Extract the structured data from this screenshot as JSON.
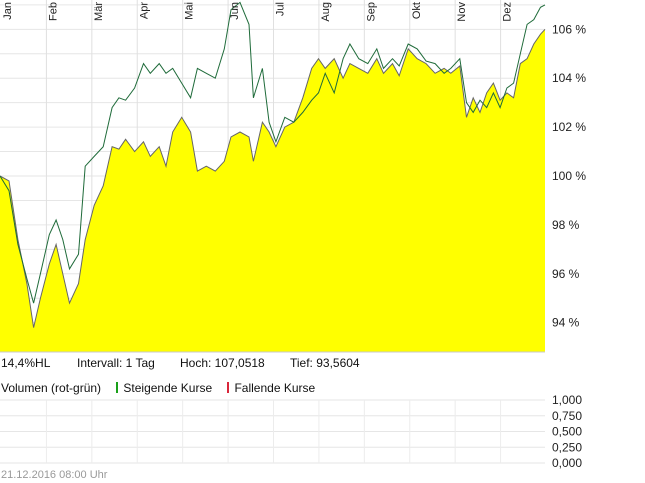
{
  "chart_data": {
    "type": "area",
    "months": [
      "Jan",
      "Feb",
      "Mär",
      "Apr",
      "Mai",
      "Jun",
      "Jul",
      "Aug",
      "Sep",
      "Okt",
      "Nov",
      "Dez"
    ],
    "y_ticks": [
      "94 %",
      "96 %",
      "98 %",
      "100 %",
      "102 %",
      "104 %",
      "106 %"
    ],
    "ylim": [
      92.8,
      107.2
    ],
    "x_range": [
      0,
      243
    ],
    "grid": true,
    "series": [
      {
        "fill": "#ffff00",
        "line": "#666666",
        "points": [
          [
            0,
            100
          ],
          [
            4,
            99.8
          ],
          [
            8,
            97.4
          ],
          [
            12,
            95.6
          ],
          [
            15,
            93.8
          ],
          [
            18,
            95
          ],
          [
            22,
            96.4
          ],
          [
            25,
            97.2
          ],
          [
            28,
            96
          ],
          [
            31,
            94.8
          ],
          [
            35,
            95.6
          ],
          [
            38,
            97.4
          ],
          [
            42,
            98.8
          ],
          [
            46,
            99.6
          ],
          [
            50,
            101.2
          ],
          [
            53,
            101.1
          ],
          [
            56,
            101.5
          ],
          [
            60,
            101
          ],
          [
            64,
            101.4
          ],
          [
            67,
            100.8
          ],
          [
            71,
            101.2
          ],
          [
            74,
            100.4
          ],
          [
            77,
            101.8
          ],
          [
            81,
            102.4
          ],
          [
            85,
            101.8
          ],
          [
            88,
            100.2
          ],
          [
            92,
            100.4
          ],
          [
            96,
            100.2
          ],
          [
            100,
            100.6
          ],
          [
            103,
            101.6
          ],
          [
            107,
            101.8
          ],
          [
            111,
            101.6
          ],
          [
            113,
            100.6
          ],
          [
            117,
            102.2
          ],
          [
            120,
            101.8
          ],
          [
            123,
            101.2
          ],
          [
            127,
            102
          ],
          [
            131,
            102.2
          ],
          [
            135,
            103.2
          ],
          [
            139,
            104.4
          ],
          [
            142,
            104.8
          ],
          [
            145,
            104.4
          ],
          [
            149,
            104.8
          ],
          [
            153,
            104
          ],
          [
            156,
            104.6
          ],
          [
            160,
            104.4
          ],
          [
            164,
            104.2
          ],
          [
            168,
            104.8
          ],
          [
            171,
            104.2
          ],
          [
            175,
            104.6
          ],
          [
            178,
            104.1
          ],
          [
            182,
            105.2
          ],
          [
            186,
            104.8
          ],
          [
            190,
            104.6
          ],
          [
            194,
            104.2
          ],
          [
            198,
            104.4
          ],
          [
            201,
            104.2
          ],
          [
            205,
            104.5
          ],
          [
            208,
            102.4
          ],
          [
            211,
            103.2
          ],
          [
            214,
            102.6
          ],
          [
            217,
            103.4
          ],
          [
            220,
            103.8
          ],
          [
            223,
            103.1
          ],
          [
            226,
            103.4
          ],
          [
            229,
            103.2
          ],
          [
            232,
            104.6
          ],
          [
            235,
            104.8
          ],
          [
            238,
            105.4
          ],
          [
            241,
            105.8
          ],
          [
            243,
            106
          ]
        ]
      },
      {
        "line": "#1f6b3a",
        "points": [
          [
            0,
            100
          ],
          [
            4,
            99.4
          ],
          [
            8,
            97.2
          ],
          [
            12,
            95.8
          ],
          [
            15,
            94.8
          ],
          [
            18,
            96
          ],
          [
            22,
            97.6
          ],
          [
            25,
            98.2
          ],
          [
            28,
            97.4
          ],
          [
            31,
            96.2
          ],
          [
            35,
            96.8
          ],
          [
            38,
            100.4
          ],
          [
            42,
            100.8
          ],
          [
            46,
            101.2
          ],
          [
            50,
            102.8
          ],
          [
            53,
            103.2
          ],
          [
            56,
            103.1
          ],
          [
            60,
            103.6
          ],
          [
            64,
            104.6
          ],
          [
            67,
            104.2
          ],
          [
            71,
            104.6
          ],
          [
            74,
            104.2
          ],
          [
            77,
            104.4
          ],
          [
            81,
            103.8
          ],
          [
            85,
            103.2
          ],
          [
            88,
            104.4
          ],
          [
            92,
            104.2
          ],
          [
            96,
            104
          ],
          [
            100,
            105.2
          ],
          [
            103,
            106.8
          ],
          [
            107,
            107.1
          ],
          [
            111,
            106.2
          ],
          [
            113,
            103.2
          ],
          [
            117,
            104.4
          ],
          [
            120,
            102.2
          ],
          [
            123,
            101.4
          ],
          [
            127,
            102.4
          ],
          [
            131,
            102.2
          ],
          [
            135,
            102.6
          ],
          [
            139,
            103.1
          ],
          [
            142,
            103.4
          ],
          [
            145,
            104.2
          ],
          [
            149,
            103.4
          ],
          [
            153,
            104.8
          ],
          [
            156,
            105.4
          ],
          [
            160,
            104.8
          ],
          [
            164,
            104.6
          ],
          [
            168,
            105.2
          ],
          [
            171,
            104.4
          ],
          [
            175,
            104.8
          ],
          [
            178,
            104.5
          ],
          [
            182,
            105.4
          ],
          [
            186,
            105.2
          ],
          [
            190,
            104.7
          ],
          [
            194,
            104.6
          ],
          [
            198,
            104.2
          ],
          [
            201,
            104.4
          ],
          [
            205,
            104.8
          ],
          [
            208,
            103
          ],
          [
            211,
            102.6
          ],
          [
            214,
            103.1
          ],
          [
            217,
            102.8
          ],
          [
            220,
            103.4
          ],
          [
            223,
            102.8
          ],
          [
            226,
            103.6
          ],
          [
            229,
            103.8
          ],
          [
            232,
            105
          ],
          [
            235,
            106.2
          ],
          [
            238,
            106.4
          ],
          [
            241,
            106.9
          ],
          [
            243,
            107
          ]
        ]
      }
    ]
  },
  "info": {
    "hl": "14,4%HL",
    "interval": "Intervall: 1 Tag",
    "high": "Hoch: 107,0518",
    "low": "Tief: 93,5604"
  },
  "volume": {
    "title": "Volumen (rot-grün)",
    "legend_up": "Steigende Kurse",
    "legend_down": "Fallende Kurse",
    "color_up": "#1aa01a",
    "color_down": "#d9263a",
    "ticks": [
      "1,000",
      "0,750",
      "0,500",
      "0,250",
      "0,000"
    ]
  },
  "timestamp": "21.12.2016 08:00 Uhr"
}
